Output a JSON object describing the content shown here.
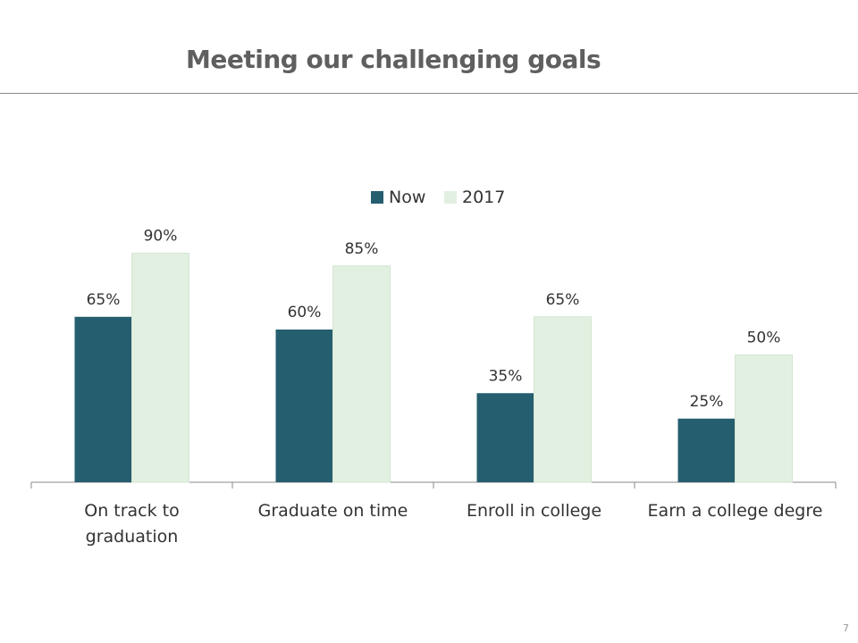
{
  "slide": {
    "title": "Meeting our challenging goals",
    "page_number": "7"
  },
  "chart_data": {
    "type": "bar",
    "categories": [
      [
        "On track to",
        "graduation"
      ],
      [
        "Graduate on time"
      ],
      [
        "Enroll in college"
      ],
      [
        "Earn a college degre"
      ]
    ],
    "series": [
      {
        "name": "Now",
        "values": [
          65,
          60,
          35,
          25
        ],
        "labels": [
          "65%",
          "60%",
          "35%",
          "25%"
        ],
        "color": "#255e6f"
      },
      {
        "name": "2017",
        "values": [
          90,
          85,
          65,
          50
        ],
        "labels": [
          "90%",
          "85%",
          "65%",
          "50%"
        ],
        "color": "#e2f0e1"
      }
    ],
    "ylim": [
      0,
      100
    ],
    "grid": false,
    "legend": "top-center"
  }
}
